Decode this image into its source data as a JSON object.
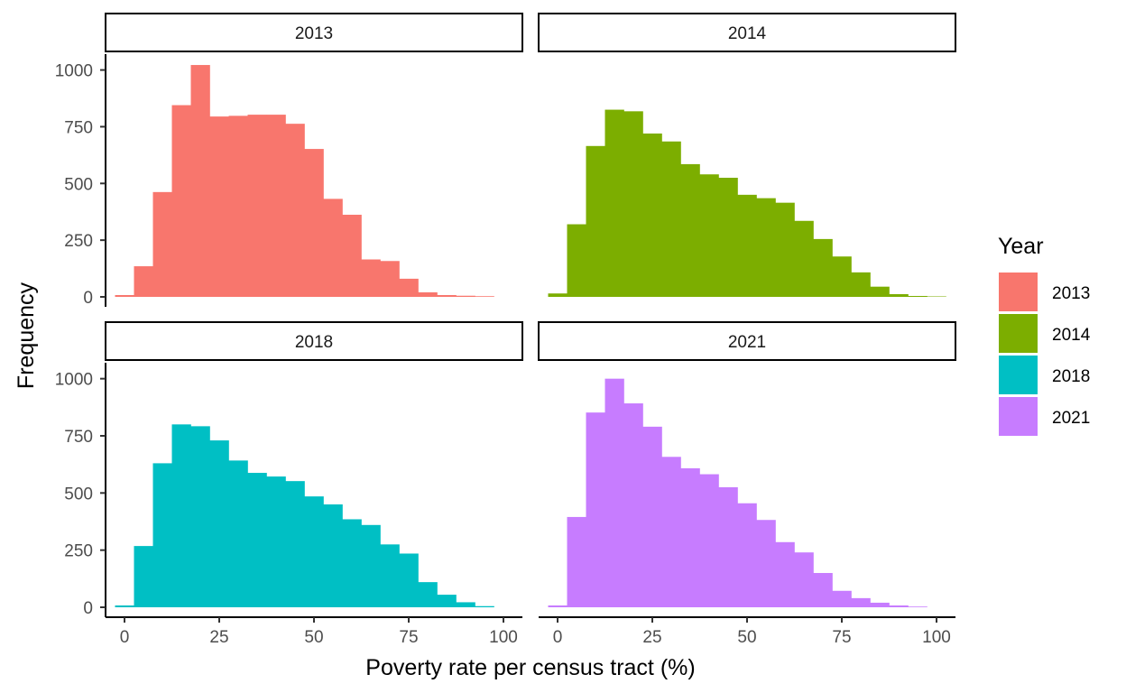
{
  "chart_data": {
    "type": "bar",
    "subtype": "faceted-histogram",
    "xlabel": "Poverty rate per census tract (%)",
    "ylabel": "Frequency",
    "xlim": [
      -5,
      105
    ],
    "ylim": [
      0,
      1050
    ],
    "x_ticks": [
      0,
      25,
      50,
      75,
      100
    ],
    "y_ticks": [
      0,
      250,
      500,
      750,
      1000
    ],
    "bin_width": 5,
    "bin_centers": [
      0,
      5,
      10,
      15,
      20,
      25,
      30,
      35,
      40,
      45,
      50,
      55,
      60,
      65,
      70,
      75,
      80,
      85,
      90,
      95,
      100
    ],
    "grid": false,
    "legend": {
      "title": "Year",
      "position": "right",
      "entries": [
        "2013",
        "2014",
        "2018",
        "2021"
      ]
    },
    "panels": [
      {
        "label": "2013",
        "color": "#F8766D",
        "bin_centers": [
          0,
          5,
          10,
          15,
          20,
          25,
          30,
          35,
          40,
          45,
          50,
          55,
          60,
          65,
          70,
          75,
          80,
          85,
          90,
          95
        ],
        "values": [
          8,
          135,
          462,
          845,
          1022,
          795,
          798,
          803,
          803,
          763,
          652,
          432,
          362,
          165,
          158,
          80,
          20,
          8,
          5,
          3
        ]
      },
      {
        "label": "2014",
        "color": "#7CAE00",
        "bin_centers": [
          0,
          5,
          10,
          15,
          20,
          25,
          30,
          35,
          40,
          45,
          50,
          55,
          60,
          65,
          70,
          75,
          80,
          85,
          90,
          95,
          100
        ],
        "values": [
          15,
          320,
          665,
          825,
          818,
          720,
          685,
          585,
          540,
          525,
          450,
          435,
          415,
          335,
          255,
          178,
          108,
          45,
          12,
          4,
          2
        ]
      },
      {
        "label": "2018",
        "color": "#00BFC4",
        "bin_centers": [
          0,
          5,
          10,
          15,
          20,
          25,
          30,
          35,
          40,
          45,
          50,
          55,
          60,
          65,
          70,
          75,
          80,
          85,
          90,
          95
        ],
        "values": [
          8,
          268,
          630,
          800,
          792,
          730,
          642,
          588,
          572,
          552,
          485,
          450,
          385,
          360,
          275,
          235,
          110,
          55,
          22,
          5
        ]
      },
      {
        "label": "2021",
        "color": "#C77CFF",
        "bin_centers": [
          0,
          5,
          10,
          15,
          20,
          25,
          30,
          35,
          40,
          45,
          50,
          55,
          60,
          65,
          70,
          75,
          80,
          85,
          90,
          95
        ],
        "values": [
          8,
          395,
          852,
          1000,
          892,
          790,
          658,
          608,
          582,
          525,
          455,
          382,
          285,
          240,
          150,
          72,
          40,
          20,
          8,
          3
        ]
      }
    ]
  }
}
